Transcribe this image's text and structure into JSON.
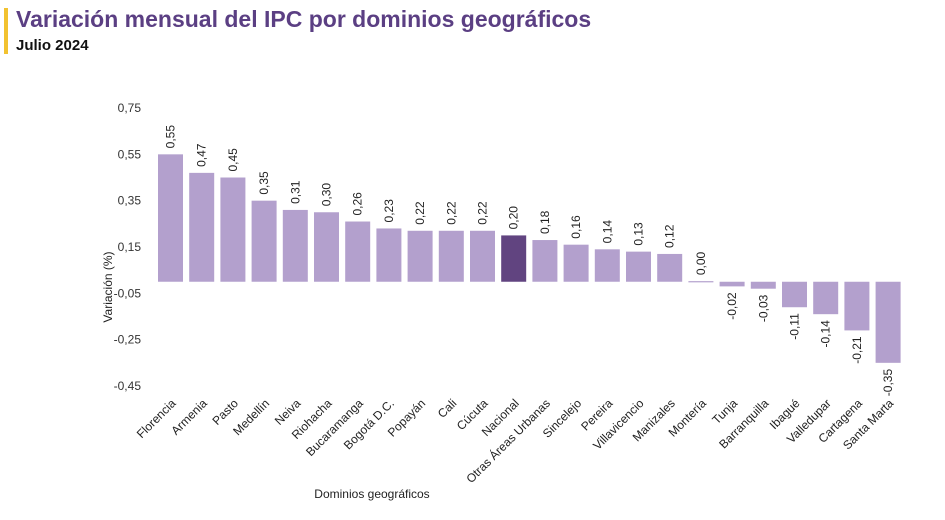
{
  "header": {
    "title": "Variación mensual del IPC por dominios geográficos",
    "subtitle": "Julio 2024"
  },
  "colors": {
    "accent": "#f2c230",
    "title": "#5b3f83",
    "bar": "#b3a0cd",
    "highlight": "#614480"
  },
  "chart_data": {
    "type": "bar",
    "title": "Variación mensual del IPC por dominios geográficos",
    "subtitle": "Julio 2024",
    "xlabel": "Dominios geográficos",
    "ylabel": "Variación (%)",
    "ylim": [
      -0.45,
      0.75
    ],
    "yticks": [
      0.75,
      0.55,
      0.35,
      0.15,
      -0.05,
      -0.25,
      -0.45
    ],
    "ytick_labels": [
      "0,75",
      "0,55",
      "0,35",
      "0,15",
      "-0,05",
      "-0,25",
      "-0,45"
    ],
    "grid": false,
    "highlight_category": "Nacional",
    "categories": [
      "Florencia",
      "Armenia",
      "Pasto",
      "Medellín",
      "Neiva",
      "Riohacha",
      "Bucaramanga",
      "Bogotá D.C.",
      "Popayán",
      "Cali",
      "Cúcuta",
      "Nacional",
      "Otras Áreas Urbanas",
      "Sincelejo",
      "Pereira",
      "Villavicencio",
      "Manizales",
      "Montería",
      "Tunja",
      "Barranquilla",
      "Ibagué",
      "Valledupar",
      "Cartagena",
      "Santa Marta"
    ],
    "values": [
      0.55,
      0.47,
      0.45,
      0.35,
      0.31,
      0.3,
      0.26,
      0.23,
      0.22,
      0.22,
      0.22,
      0.2,
      0.18,
      0.16,
      0.14,
      0.13,
      0.12,
      0.0,
      -0.02,
      -0.03,
      -0.11,
      -0.14,
      -0.21,
      -0.35
    ],
    "value_labels": [
      "0,55",
      "0,47",
      "0,45",
      "0,35",
      "0,31",
      "0,30",
      "0,26",
      "0,23",
      "0,22",
      "0,22",
      "0,22",
      "0,20",
      "0,18",
      "0,16",
      "0,14",
      "0,13",
      "0,12",
      "0,00",
      "-0,02",
      "-0,03",
      "-0,11",
      "-0,14",
      "-0,21",
      "-0,35"
    ]
  }
}
